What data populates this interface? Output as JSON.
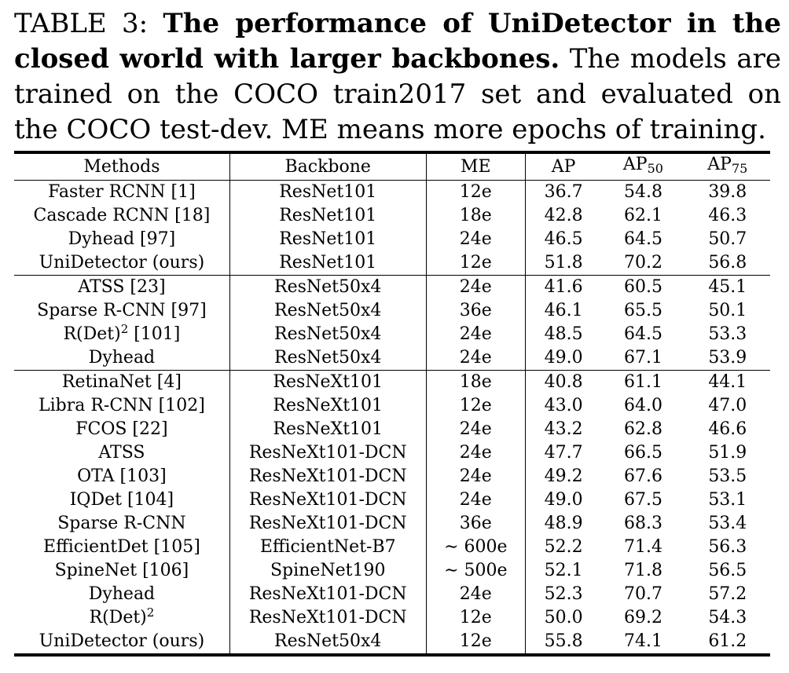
{
  "caption": {
    "label": "TABLE 3: ",
    "title": "The performance of UniDetector in the closed world with larger backbones.",
    "text": " The models are trained on the COCO train2017 set and evaluated on the COCO test-dev. ME means more epochs of training."
  },
  "table": {
    "headers": {
      "methods": "Methods",
      "backbone": "Backbone",
      "me": "ME",
      "ap": "AP",
      "ap50_base": "AP",
      "ap50_sub": "50",
      "ap75_base": "AP",
      "ap75_sub": "75"
    },
    "groups": [
      [
        {
          "method": "Faster RCNN [1]",
          "backbone": "ResNet101",
          "me": "12e",
          "ap": "36.7",
          "ap50": "54.8",
          "ap75": "39.8"
        },
        {
          "method": "Cascade RCNN [18]",
          "backbone": "ResNet101",
          "me": "18e",
          "ap": "42.8",
          "ap50": "62.1",
          "ap75": "46.3"
        },
        {
          "method": "Dyhead [97]",
          "backbone": "ResNet101",
          "me": "24e",
          "ap": "46.5",
          "ap50": "64.5",
          "ap75": "50.7"
        },
        {
          "method": "UniDetector (ours)",
          "backbone": "ResNet101",
          "me": "12e",
          "ap": "51.8",
          "ap50": "70.2",
          "ap75": "56.8",
          "bold": true
        }
      ],
      [
        {
          "method": "ATSS [23]",
          "backbone": "ResNet50x4",
          "me": "24e",
          "ap": "41.6",
          "ap50": "60.5",
          "ap75": "45.1"
        },
        {
          "method": "Sparse R-CNN [97]",
          "backbone": "ResNet50x4",
          "me": "36e",
          "ap": "46.1",
          "ap50": "65.5",
          "ap75": "50.1"
        },
        {
          "method": "R(Det)",
          "method_sup": "2",
          "method_tail": " [101]",
          "backbone": "ResNet50x4",
          "me": "24e",
          "ap": "48.5",
          "ap50": "64.5",
          "ap75": "53.3"
        },
        {
          "method": "Dyhead",
          "backbone": "ResNet50x4",
          "me": "24e",
          "ap": "49.0",
          "ap50": "67.1",
          "ap75": "53.9"
        }
      ],
      [
        {
          "method": "RetinaNet [4]",
          "backbone": "ResNeXt101",
          "me": "18e",
          "ap": "40.8",
          "ap50": "61.1",
          "ap75": "44.1"
        },
        {
          "method": "Libra R-CNN [102]",
          "backbone": "ResNeXt101",
          "me": "12e",
          "ap": "43.0",
          "ap50": "64.0",
          "ap75": "47.0"
        },
        {
          "method": "FCOS [22]",
          "backbone": "ResNeXt101",
          "me": "24e",
          "ap": "43.2",
          "ap50": "62.8",
          "ap75": "46.6"
        },
        {
          "method": "ATSS",
          "backbone": "ResNeXt101-DCN",
          "me": "24e",
          "ap": "47.7",
          "ap50": "66.5",
          "ap75": "51.9"
        },
        {
          "method": "OTA [103]",
          "backbone": "ResNeXt101-DCN",
          "me": "24e",
          "ap": "49.2",
          "ap50": "67.6",
          "ap75": "53.5"
        },
        {
          "method": "IQDet [104]",
          "backbone": "ResNeXt101-DCN",
          "me": "24e",
          "ap": "49.0",
          "ap50": "67.5",
          "ap75": "53.1"
        },
        {
          "method": "Sparse R-CNN",
          "backbone": "ResNeXt101-DCN",
          "me": "36e",
          "ap": "48.9",
          "ap50": "68.3",
          "ap75": "53.4"
        },
        {
          "method": "EfficientDet [105]",
          "backbone": "EfficientNet-B7",
          "me": "∼ 600e",
          "ap": "52.2",
          "ap50": "71.4",
          "ap75": "56.3"
        },
        {
          "method": "SpineNet [106]",
          "backbone": "SpineNet190",
          "me": "∼ 500e",
          "ap": "52.1",
          "ap50": "71.8",
          "ap75": "56.5"
        },
        {
          "method": "Dyhead",
          "backbone": "ResNeXt101-DCN",
          "me": "24e",
          "ap": "52.3",
          "ap50": "70.7",
          "ap75": "57.2"
        },
        {
          "method": "R(Det)",
          "method_sup": "2",
          "method_tail": "",
          "backbone": "ResNeXt101-DCN",
          "me": "12e",
          "ap": "50.0",
          "ap50": "69.2",
          "ap75": "54.3"
        },
        {
          "method": "UniDetector (ours)",
          "backbone": "ResNet50x4",
          "me": "12e",
          "ap": "55.8",
          "ap50": "74.1",
          "ap75": "61.2",
          "bold": true
        }
      ]
    ]
  }
}
